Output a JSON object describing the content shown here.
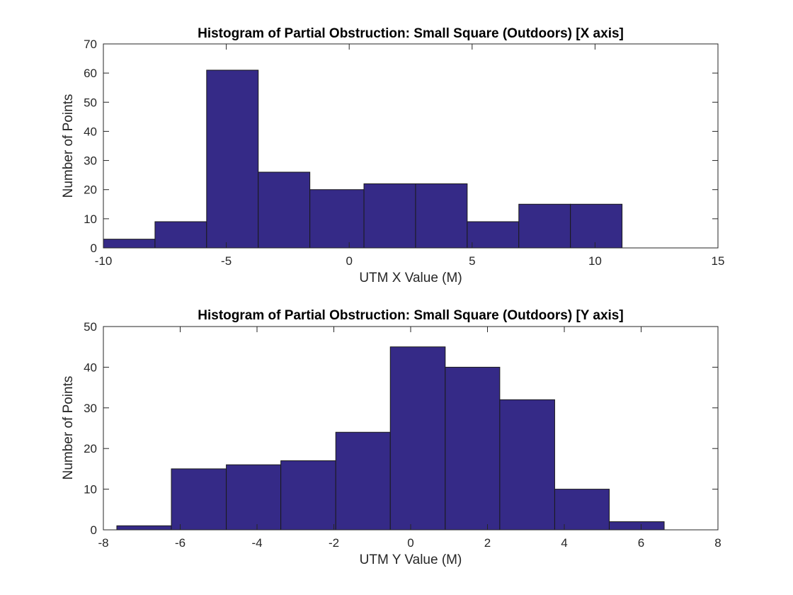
{
  "chart_data": [
    {
      "type": "bar",
      "title": "Histogram of Partial Obstruction: Small Square (Outdoors) [X axis]",
      "xlabel": "UTM X Value (M)",
      "ylabel": "Number of Points",
      "xlim": [
        -10,
        15
      ],
      "ylim": [
        0,
        70
      ],
      "xticks": [
        "-10",
        "-5",
        "0",
        "5",
        "10",
        "15"
      ],
      "yticks": [
        "0",
        "10",
        "20",
        "30",
        "40",
        "50",
        "60",
        "70"
      ],
      "bar_color": "#352a87",
      "grid": false,
      "bins": [
        {
          "x0": -10.0,
          "x1": -7.9,
          "count": 3
        },
        {
          "x0": -7.9,
          "x1": -5.8,
          "count": 9
        },
        {
          "x0": -5.8,
          "x1": -3.7,
          "count": 61
        },
        {
          "x0": -3.7,
          "x1": -1.6,
          "count": 26
        },
        {
          "x0": -1.6,
          "x1": 0.6,
          "count": 20
        },
        {
          "x0": 0.6,
          "x1": 2.7,
          "count": 22
        },
        {
          "x0": 2.7,
          "x1": 4.8,
          "count": 22
        },
        {
          "x0": 4.8,
          "x1": 6.9,
          "count": 9
        },
        {
          "x0": 6.9,
          "x1": 9.0,
          "count": 15
        },
        {
          "x0": 9.0,
          "x1": 11.1,
          "count": 15
        }
      ]
    },
    {
      "type": "bar",
      "title": "Histogram of Partial Obstruction: Small Square (Outdoors) [Y axis]",
      "xlabel": "UTM Y Value (M)",
      "ylabel": "Number of Points",
      "xlim": [
        -8,
        8
      ],
      "ylim": [
        0,
        50
      ],
      "xticks": [
        "-8",
        "-6",
        "-4",
        "-2",
        "0",
        "2",
        "4",
        "6",
        "8"
      ],
      "yticks": [
        "0",
        "10",
        "20",
        "30",
        "40",
        "50"
      ],
      "bar_color": "#352a87",
      "grid": false,
      "bins": [
        {
          "x0": -7.65,
          "x1": -6.23,
          "count": 1
        },
        {
          "x0": -6.23,
          "x1": -4.8,
          "count": 15
        },
        {
          "x0": -4.8,
          "x1": -3.38,
          "count": 16
        },
        {
          "x0": -3.38,
          "x1": -1.95,
          "count": 17
        },
        {
          "x0": -1.95,
          "x1": -0.53,
          "count": 24
        },
        {
          "x0": -0.53,
          "x1": 0.9,
          "count": 45
        },
        {
          "x0": 0.9,
          "x1": 2.32,
          "count": 40
        },
        {
          "x0": 2.32,
          "x1": 3.75,
          "count": 32
        },
        {
          "x0": 3.75,
          "x1": 5.17,
          "count": 10
        },
        {
          "x0": 5.17,
          "x1": 6.6,
          "count": 2
        }
      ]
    }
  ]
}
